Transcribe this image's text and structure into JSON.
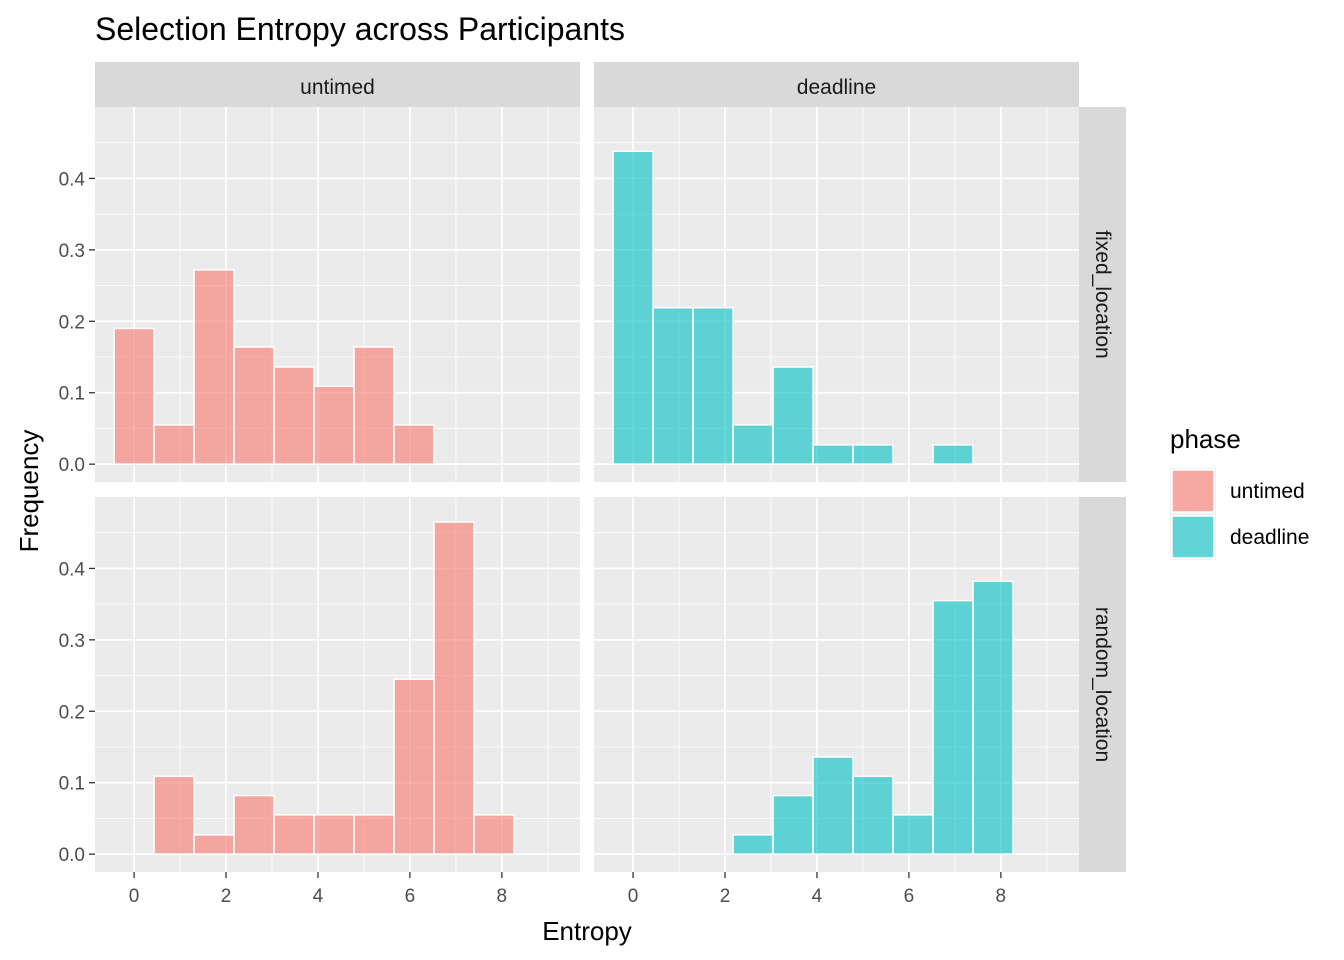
{
  "chart_data": {
    "type": "bar",
    "subtype": "faceted-histogram",
    "title": "Selection Entropy across Participants",
    "xlabel": "Entropy",
    "ylabel": "Frequency",
    "xlim": [
      -0.85,
      9.7
    ],
    "ylim": [
      -0.025,
      0.5
    ],
    "x_ticks": [
      "0",
      "2",
      "4",
      "6",
      "8"
    ],
    "y_ticks": [
      "0.0",
      "0.1",
      "0.2",
      "0.3",
      "0.4"
    ],
    "bin_width": 0.87,
    "bin_centers": [
      0.0,
      0.87,
      1.74,
      2.61,
      3.48,
      4.35,
      5.22,
      6.09,
      6.96,
      7.83
    ],
    "grid": true,
    "legend": {
      "title": "phase",
      "position": "right",
      "entries": [
        {
          "label": "untimed",
          "color": "#F8766D"
        },
        {
          "label": "deadline",
          "color": "#00BFC4"
        }
      ]
    },
    "col_strips": [
      "untimed",
      "deadline"
    ],
    "row_strips": [
      "fixed_location",
      "random_location"
    ],
    "panels": [
      {
        "phase": "untimed",
        "layout": "fixed_location",
        "color": "#F8766D",
        "values": [
          0.19,
          0.055,
          0.272,
          0.164,
          0.136,
          0.109,
          0.164,
          0.055,
          0.0,
          0.0
        ]
      },
      {
        "phase": "deadline",
        "layout": "fixed_location",
        "color": "#00BFC4",
        "values": [
          0.438,
          0.219,
          0.219,
          0.055,
          0.136,
          0.027,
          0.027,
          0.0,
          0.027,
          0.0
        ]
      },
      {
        "phase": "untimed",
        "layout": "random_location",
        "color": "#F8766D",
        "values": [
          0.0,
          0.109,
          0.027,
          0.082,
          0.055,
          0.055,
          0.055,
          0.245,
          0.465,
          0.055
        ]
      },
      {
        "phase": "deadline",
        "layout": "random_location",
        "color": "#00BFC4",
        "values": [
          0.0,
          0.0,
          0.0,
          0.027,
          0.082,
          0.136,
          0.109,
          0.055,
          0.355,
          0.382
        ]
      }
    ]
  }
}
